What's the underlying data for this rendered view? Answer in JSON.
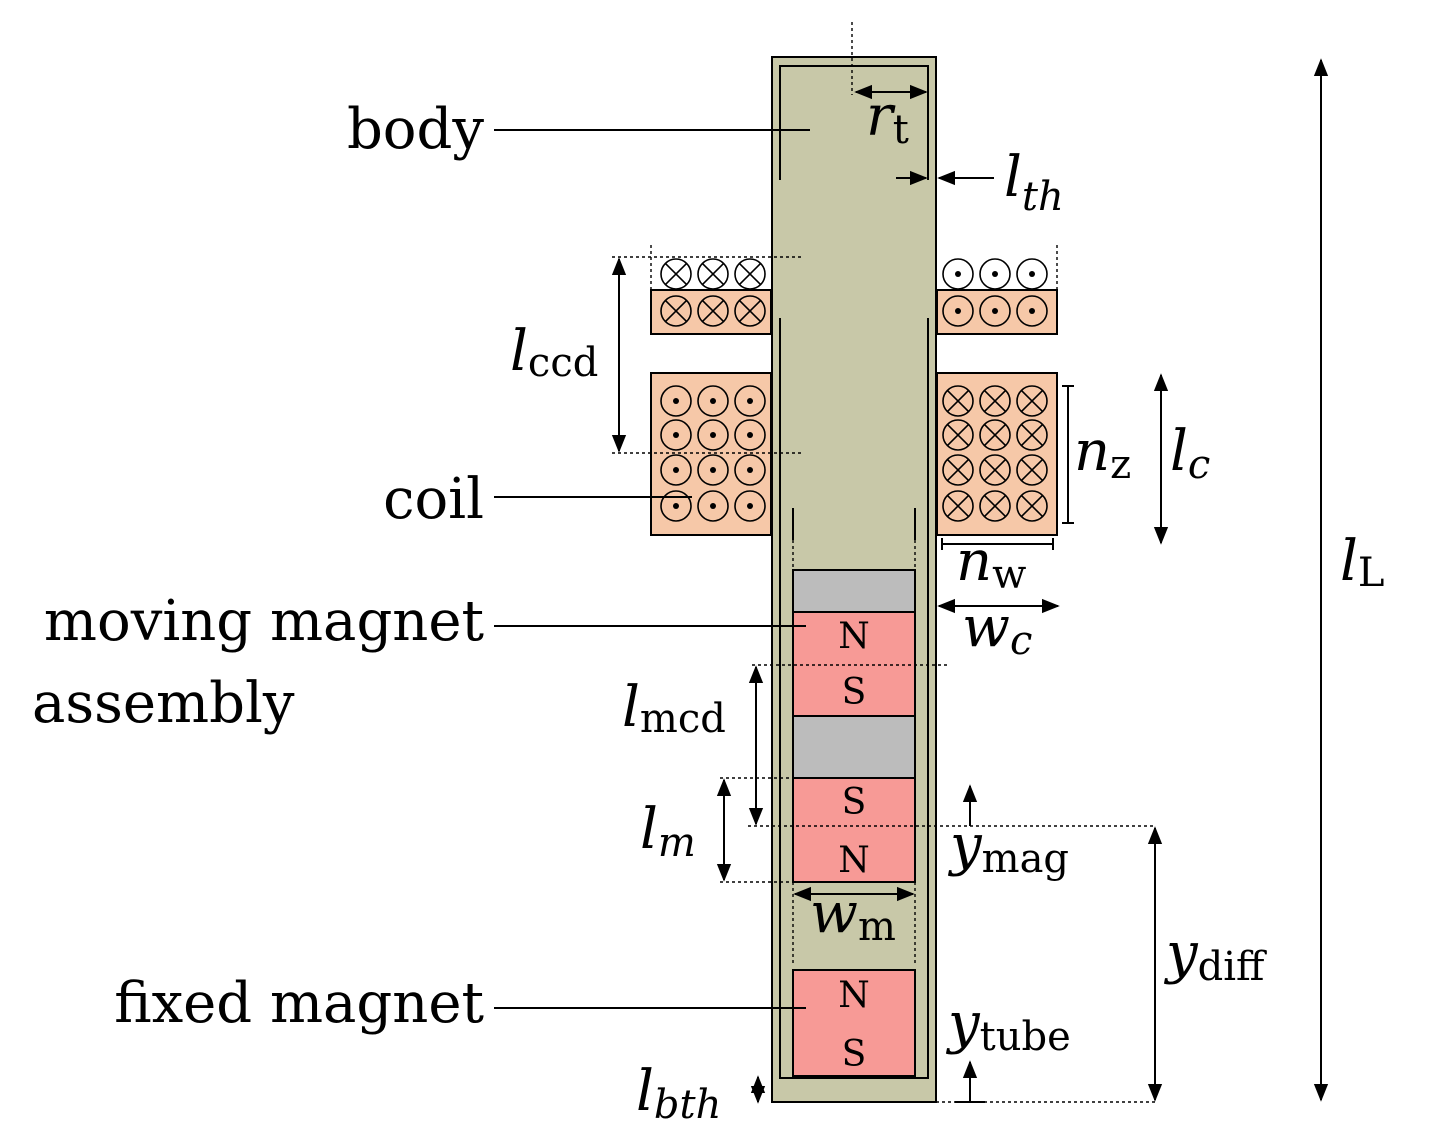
{
  "colors": {
    "body": "#c8c8a8",
    "coil": "#f6c8a8",
    "magnet": "#f79a96",
    "spacer": "#bcbcbc",
    "outline": "#000000"
  },
  "labels": {
    "body": "body",
    "coil": "coil",
    "moving_magnet_line1": "moving magnet",
    "moving_magnet_line2": "assembly",
    "fixed_magnet": "fixed magnet"
  },
  "poles": {
    "moving_top_upper": "N",
    "moving_top_lower": "S",
    "moving_bottom_upper": "S",
    "moving_bottom_lower": "N",
    "fixed_upper": "N",
    "fixed_lower": "S"
  },
  "dimensions": {
    "r_t": {
      "symbol": "r",
      "sub": "t"
    },
    "l_th": {
      "symbol": "l",
      "sub": "th"
    },
    "l_ccd": {
      "symbol": "l",
      "sub": "ccd"
    },
    "n_z": {
      "symbol": "n",
      "sub": "z"
    },
    "l_c": {
      "symbol": "l",
      "sub": "c"
    },
    "n_w": {
      "symbol": "n",
      "sub": "w"
    },
    "w_c": {
      "symbol": "w",
      "sub": "c"
    },
    "l_L": {
      "symbol": "l",
      "sub": "L"
    },
    "l_mcd": {
      "symbol": "l",
      "sub": "mcd"
    },
    "l_m": {
      "symbol": "l",
      "sub": "m"
    },
    "y_mag": {
      "symbol": "y",
      "sub": "mag"
    },
    "w_m": {
      "symbol": "w",
      "sub": "m"
    },
    "y_diff": {
      "symbol": "y",
      "sub": "diff"
    },
    "y_tube": {
      "symbol": "y",
      "sub": "tube"
    },
    "l_bth": {
      "symbol": "l",
      "sub": "bth"
    }
  }
}
